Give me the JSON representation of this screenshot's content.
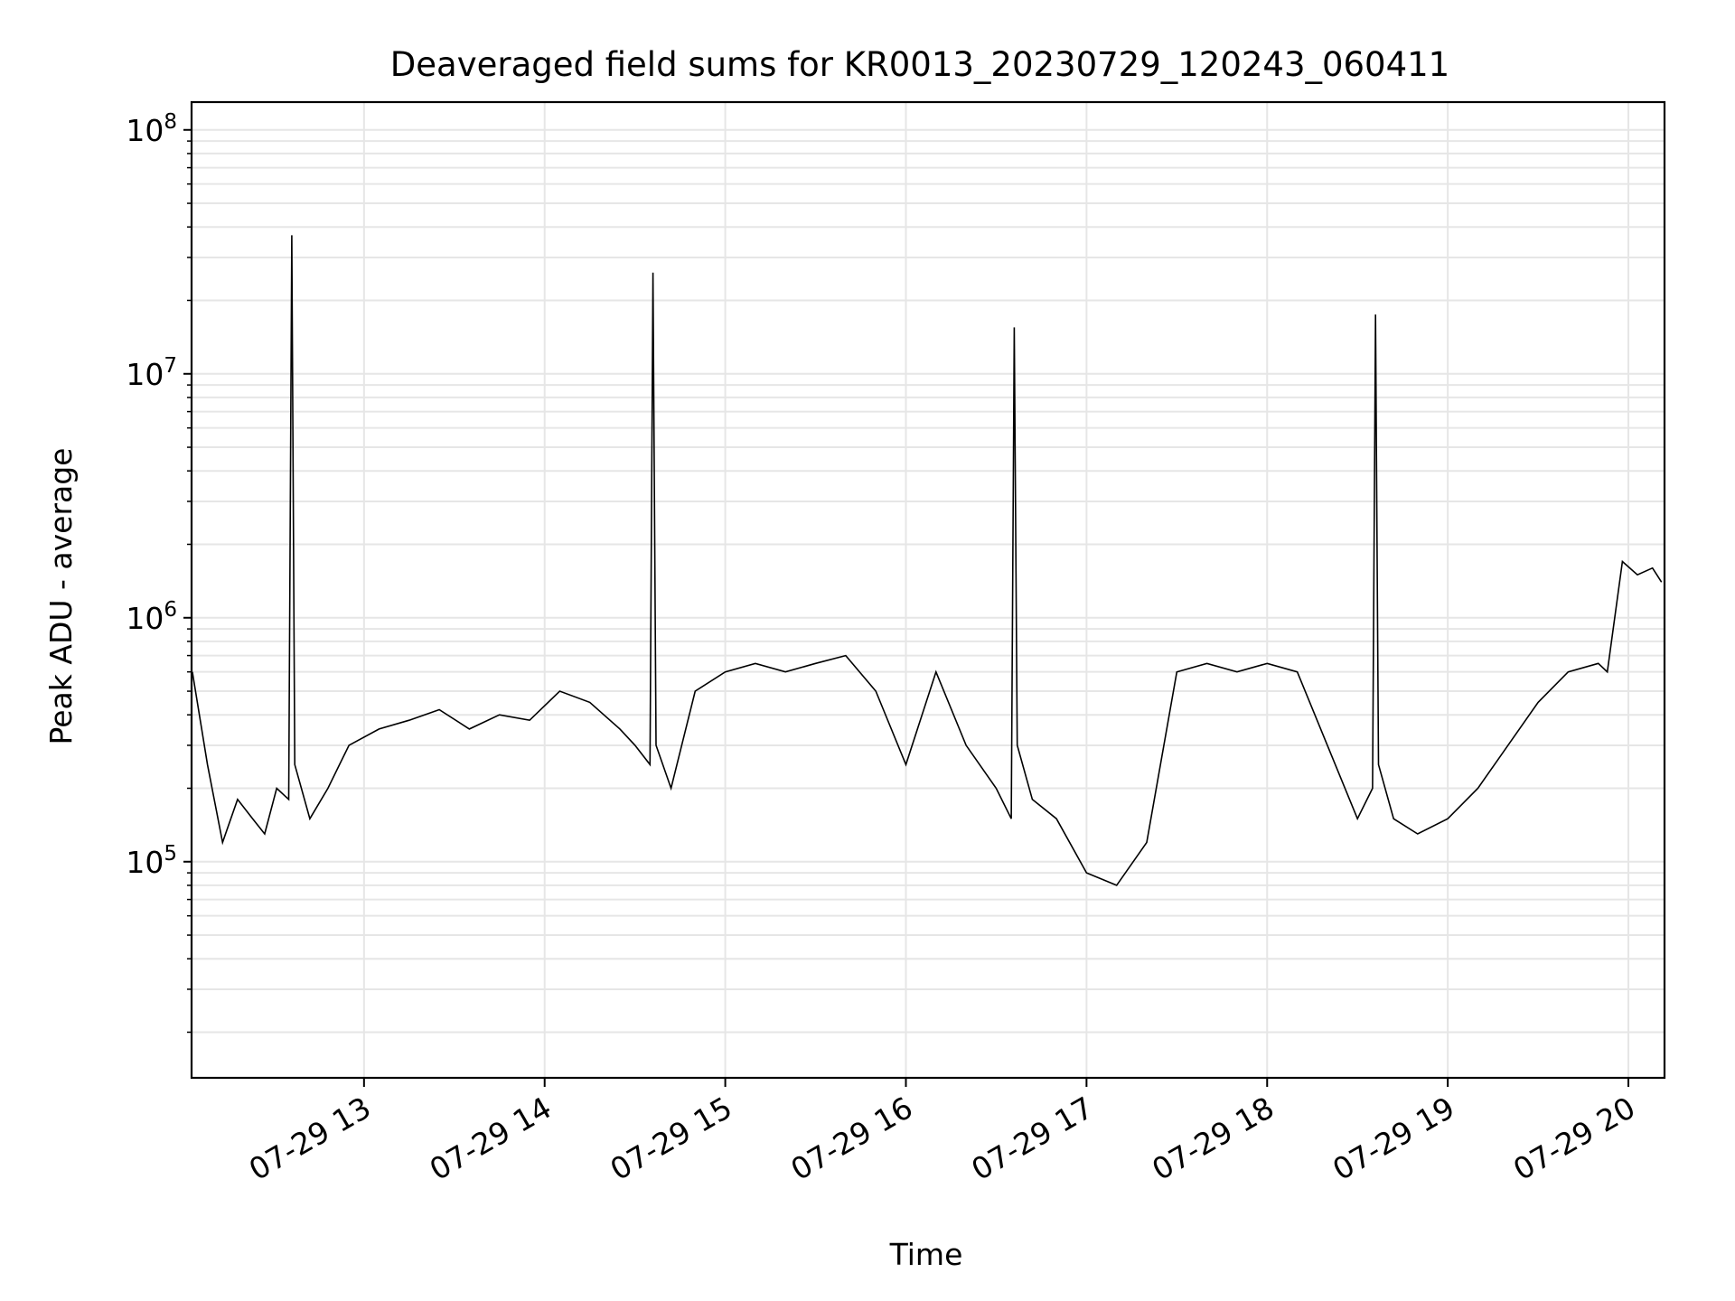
{
  "chart_data": {
    "type": "line",
    "title": "Deaveraged field sums for KR0013_20230729_120243_060411",
    "xlabel": "Time",
    "ylabel": "Peak ADU - average",
    "yscale": "log",
    "ylim": [
      13000,
      130000000
    ],
    "xlim": [
      "2023-07-29 12:02:43",
      "2023-07-29 20:12:00"
    ],
    "grid": true,
    "line_color": "#000000",
    "grid_color": "#e6e6e6",
    "x_ticks": [
      {
        "value": "2023-07-29 13:00",
        "label": "07-29 13"
      },
      {
        "value": "2023-07-29 14:00",
        "label": "07-29 14"
      },
      {
        "value": "2023-07-29 15:00",
        "label": "07-29 15"
      },
      {
        "value": "2023-07-29 16:00",
        "label": "07-29 16"
      },
      {
        "value": "2023-07-29 17:00",
        "label": "07-29 17"
      },
      {
        "value": "2023-07-29 18:00",
        "label": "07-29 18"
      },
      {
        "value": "2023-07-29 19:00",
        "label": "07-29 19"
      },
      {
        "value": "2023-07-29 20:00",
        "label": "07-29 20"
      }
    ],
    "y_ticks": [
      {
        "value": 100000,
        "label_base": "10",
        "label_exp": "5"
      },
      {
        "value": 1000000,
        "label_base": "10",
        "label_exp": "6"
      },
      {
        "value": 10000000,
        "label_base": "10",
        "label_exp": "7"
      },
      {
        "value": 100000000,
        "label_base": "10",
        "label_exp": "8"
      }
    ],
    "series": [
      {
        "x": [
          "2023-07-29 12:03",
          "2023-07-29 12:08",
          "2023-07-29 12:13",
          "2023-07-29 12:18",
          "2023-07-29 12:23",
          "2023-07-29 12:27",
          "2023-07-29 12:31",
          "2023-07-29 12:35",
          "2023-07-29 12:36",
          "2023-07-29 12:37",
          "2023-07-29 12:42",
          "2023-07-29 12:48",
          "2023-07-29 12:55",
          "2023-07-29 13:05",
          "2023-07-29 13:15",
          "2023-07-29 13:25",
          "2023-07-29 13:35",
          "2023-07-29 13:45",
          "2023-07-29 13:55",
          "2023-07-29 14:05",
          "2023-07-29 14:15",
          "2023-07-29 14:25",
          "2023-07-29 14:30",
          "2023-07-29 14:35",
          "2023-07-29 14:36",
          "2023-07-29 14:37",
          "2023-07-29 14:42",
          "2023-07-29 14:50",
          "2023-07-29 15:00",
          "2023-07-29 15:10",
          "2023-07-29 15:20",
          "2023-07-29 15:30",
          "2023-07-29 15:40",
          "2023-07-29 15:50",
          "2023-07-29 16:00",
          "2023-07-29 16:10",
          "2023-07-29 16:20",
          "2023-07-29 16:30",
          "2023-07-29 16:35",
          "2023-07-29 16:36",
          "2023-07-29 16:37",
          "2023-07-29 16:42",
          "2023-07-29 16:50",
          "2023-07-29 17:00",
          "2023-07-29 17:10",
          "2023-07-29 17:20",
          "2023-07-29 17:30",
          "2023-07-29 17:40",
          "2023-07-29 17:50",
          "2023-07-29 18:00",
          "2023-07-29 18:10",
          "2023-07-29 18:20",
          "2023-07-29 18:30",
          "2023-07-29 18:35",
          "2023-07-29 18:36",
          "2023-07-29 18:37",
          "2023-07-29 18:42",
          "2023-07-29 18:50",
          "2023-07-29 19:00",
          "2023-07-29 19:10",
          "2023-07-29 19:20",
          "2023-07-29 19:30",
          "2023-07-29 19:40",
          "2023-07-29 19:50",
          "2023-07-29 19:53",
          "2023-07-29 19:58",
          "2023-07-29 20:03",
          "2023-07-29 20:08",
          "2023-07-29 20:11"
        ],
        "y": [
          600000,
          250000,
          120000,
          180000,
          150000,
          130000,
          200000,
          180000,
          37000000,
          250000,
          150000,
          200000,
          300000,
          350000,
          380000,
          420000,
          350000,
          400000,
          380000,
          500000,
          450000,
          350000,
          300000,
          250000,
          26000000,
          300000,
          200000,
          500000,
          600000,
          650000,
          600000,
          650000,
          700000,
          500000,
          250000,
          600000,
          300000,
          200000,
          150000,
          15500000,
          300000,
          180000,
          150000,
          90000,
          80000,
          120000,
          600000,
          650000,
          600000,
          650000,
          600000,
          300000,
          150000,
          200000,
          17500000,
          250000,
          150000,
          130000,
          150000,
          200000,
          300000,
          450000,
          600000,
          650000,
          600000,
          1700000,
          1500000,
          1600000,
          1400000
        ]
      }
    ]
  }
}
